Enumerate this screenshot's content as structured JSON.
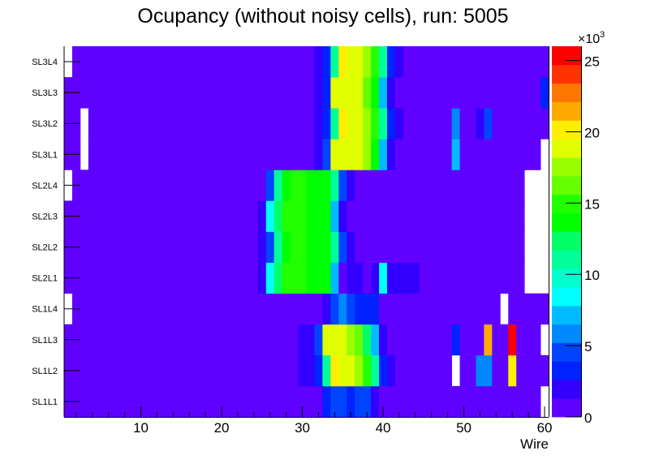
{
  "chart_data": {
    "type": "heatmap",
    "title": "Ocupancy (without noisy cells), run: 5005",
    "xlabel": "Wire",
    "ylabel": "",
    "xlim": [
      0.5,
      60.5
    ],
    "x_ticks": [
      10,
      20,
      30,
      40,
      50,
      60
    ],
    "x_tick_labels": [
      "10",
      "20",
      "30",
      "40",
      "50",
      "60"
    ],
    "y_categories": [
      "SL1L1",
      "SL1L2",
      "SL1L3",
      "SL1L4",
      "SL2L1",
      "SL2L2",
      "SL2L3",
      "SL2L4",
      "SL3L1",
      "SL3L2",
      "SL3L3",
      "SL3L4"
    ],
    "z_range": [
      0,
      26000
    ],
    "z_ticks": [
      0,
      5,
      10,
      15,
      20,
      25
    ],
    "z_tick_labels": [
      "0",
      "5",
      "10",
      "15",
      "20",
      "25"
    ],
    "z_multiplier_label": "×10",
    "z_multiplier_exponent": "3",
    "palette": [
      "#6000ff",
      "#3300ff",
      "#0022ff",
      "#0044ff",
      "#0088ff",
      "#00bbff",
      "#00ffff",
      "#00ffcc",
      "#00ff99",
      "#00ff66",
      "#00ff00",
      "#22ff00",
      "#66ff00",
      "#99ff00",
      "#e0ff00",
      "#ffee00",
      "#ffaa00",
      "#ff7700",
      "#ff3300",
      "#ff0000"
    ],
    "values": [
      [
        650,
        650,
        650,
        650,
        650,
        650,
        650,
        650,
        650,
        650,
        650,
        650,
        650,
        650,
        650,
        650,
        650,
        650,
        650,
        650,
        650,
        650,
        650,
        650,
        650,
        650,
        650,
        650,
        650,
        650,
        650,
        650,
        3250,
        4550,
        4550,
        3250,
        4550,
        4550,
        1950,
        650,
        650,
        650,
        650,
        650,
        650,
        650,
        650,
        650,
        650,
        650,
        650,
        650,
        650,
        650,
        650,
        650,
        650,
        650,
        650,
        0
      ],
      [
        650,
        650,
        650,
        650,
        650,
        650,
        650,
        650,
        650,
        650,
        650,
        650,
        650,
        650,
        650,
        650,
        650,
        650,
        650,
        650,
        650,
        650,
        650,
        650,
        650,
        650,
        650,
        650,
        650,
        1950,
        1950,
        3250,
        11050,
        20150,
        18850,
        18850,
        17550,
        14950,
        11050,
        3250,
        1950,
        650,
        650,
        650,
        650,
        650,
        650,
        650,
        0,
        650,
        650,
        5850,
        5850,
        650,
        650,
        20150,
        650,
        650,
        650,
        650
      ],
      [
        650,
        650,
        650,
        650,
        650,
        650,
        650,
        650,
        650,
        650,
        650,
        650,
        650,
        650,
        650,
        650,
        650,
        650,
        650,
        650,
        650,
        650,
        650,
        650,
        650,
        650,
        650,
        650,
        650,
        1950,
        1950,
        4550,
        18850,
        18850,
        18850,
        17550,
        16250,
        12350,
        7150,
        1950,
        650,
        650,
        650,
        650,
        650,
        650,
        650,
        650,
        3250,
        650,
        650,
        650,
        21450,
        650,
        650,
        25350,
        650,
        650,
        650,
        0
      ],
      [
        0,
        650,
        650,
        650,
        650,
        650,
        650,
        650,
        650,
        650,
        650,
        650,
        650,
        650,
        650,
        650,
        650,
        650,
        650,
        650,
        650,
        650,
        650,
        650,
        650,
        650,
        650,
        650,
        650,
        650,
        650,
        650,
        1950,
        4550,
        5850,
        4550,
        3250,
        3250,
        3250,
        650,
        650,
        650,
        650,
        650,
        650,
        650,
        650,
        650,
        650,
        650,
        650,
        650,
        650,
        650,
        0,
        650,
        650,
        650,
        650,
        650
      ],
      [
        650,
        650,
        650,
        650,
        650,
        650,
        650,
        650,
        650,
        650,
        650,
        650,
        650,
        650,
        650,
        650,
        650,
        650,
        650,
        650,
        650,
        650,
        650,
        650,
        1950,
        8450,
        12350,
        14950,
        14950,
        14950,
        13650,
        13650,
        13650,
        7150,
        650,
        1950,
        1950,
        650,
        1950,
        8450,
        1950,
        1950,
        1950,
        1950,
        650,
        650,
        650,
        650,
        650,
        650,
        650,
        650,
        650,
        650,
        650,
        650,
        650,
        0,
        0,
        0
      ],
      [
        650,
        650,
        650,
        650,
        650,
        650,
        650,
        650,
        650,
        650,
        650,
        650,
        650,
        650,
        650,
        650,
        650,
        650,
        650,
        650,
        650,
        650,
        650,
        650,
        1950,
        4550,
        11050,
        13650,
        14950,
        14950,
        13650,
        13650,
        13650,
        11050,
        4550,
        1950,
        650,
        650,
        650,
        650,
        650,
        650,
        650,
        650,
        650,
        650,
        650,
        650,
        650,
        650,
        650,
        650,
        650,
        650,
        650,
        650,
        650,
        0,
        0,
        0
      ],
      [
        650,
        650,
        650,
        650,
        650,
        650,
        650,
        650,
        650,
        650,
        650,
        650,
        650,
        650,
        650,
        650,
        650,
        650,
        650,
        650,
        650,
        650,
        650,
        650,
        1950,
        8450,
        12350,
        14950,
        14950,
        14950,
        13650,
        13650,
        13650,
        7150,
        1950,
        650,
        650,
        650,
        650,
        650,
        650,
        650,
        650,
        650,
        650,
        650,
        650,
        650,
        650,
        650,
        650,
        650,
        650,
        650,
        650,
        650,
        650,
        0,
        0,
        0
      ],
      [
        0,
        650,
        650,
        650,
        650,
        650,
        650,
        650,
        650,
        650,
        650,
        650,
        650,
        650,
        650,
        650,
        650,
        650,
        650,
        650,
        650,
        650,
        650,
        650,
        650,
        4550,
        11050,
        13650,
        14950,
        14950,
        13650,
        13650,
        13650,
        11050,
        4550,
        1950,
        650,
        650,
        650,
        650,
        650,
        650,
        650,
        650,
        650,
        650,
        650,
        650,
        650,
        650,
        650,
        650,
        650,
        650,
        650,
        650,
        650,
        0,
        0,
        0
      ],
      [
        650,
        650,
        0,
        650,
        650,
        650,
        650,
        650,
        650,
        650,
        650,
        650,
        650,
        650,
        650,
        650,
        650,
        650,
        650,
        650,
        650,
        650,
        650,
        650,
        650,
        650,
        650,
        650,
        650,
        650,
        650,
        1950,
        4550,
        18850,
        18850,
        18850,
        18850,
        17550,
        13650,
        7150,
        1950,
        650,
        650,
        650,
        650,
        650,
        650,
        650,
        7150,
        650,
        650,
        650,
        650,
        650,
        650,
        650,
        650,
        650,
        650,
        0
      ],
      [
        650,
        650,
        0,
        650,
        650,
        650,
        650,
        650,
        650,
        650,
        650,
        650,
        650,
        650,
        650,
        650,
        650,
        650,
        650,
        650,
        650,
        650,
        650,
        650,
        650,
        650,
        650,
        650,
        650,
        650,
        650,
        1950,
        3250,
        11050,
        20150,
        18850,
        18850,
        17550,
        14950,
        11050,
        3250,
        1950,
        650,
        650,
        650,
        650,
        650,
        650,
        5850,
        650,
        650,
        1950,
        4550,
        650,
        650,
        650,
        650,
        650,
        650,
        650
      ],
      [
        650,
        650,
        650,
        650,
        650,
        650,
        650,
        650,
        650,
        650,
        650,
        650,
        650,
        650,
        650,
        650,
        650,
        650,
        650,
        650,
        650,
        650,
        650,
        650,
        650,
        650,
        650,
        650,
        650,
        650,
        650,
        1950,
        3250,
        18850,
        18850,
        18850,
        18850,
        16250,
        13650,
        7150,
        1950,
        650,
        650,
        650,
        650,
        650,
        650,
        650,
        650,
        650,
        650,
        650,
        650,
        650,
        650,
        650,
        650,
        650,
        650,
        3250
      ],
      [
        0,
        650,
        650,
        650,
        650,
        650,
        650,
        650,
        650,
        650,
        650,
        650,
        650,
        650,
        650,
        650,
        650,
        650,
        650,
        650,
        650,
        650,
        650,
        650,
        650,
        650,
        650,
        650,
        650,
        650,
        650,
        1950,
        3250,
        11050,
        20150,
        18850,
        18850,
        17550,
        14950,
        11050,
        3250,
        1950,
        650,
        650,
        650,
        650,
        650,
        650,
        650,
        650,
        650,
        650,
        650,
        650,
        650,
        650,
        650,
        650,
        650,
        650
      ]
    ]
  }
}
